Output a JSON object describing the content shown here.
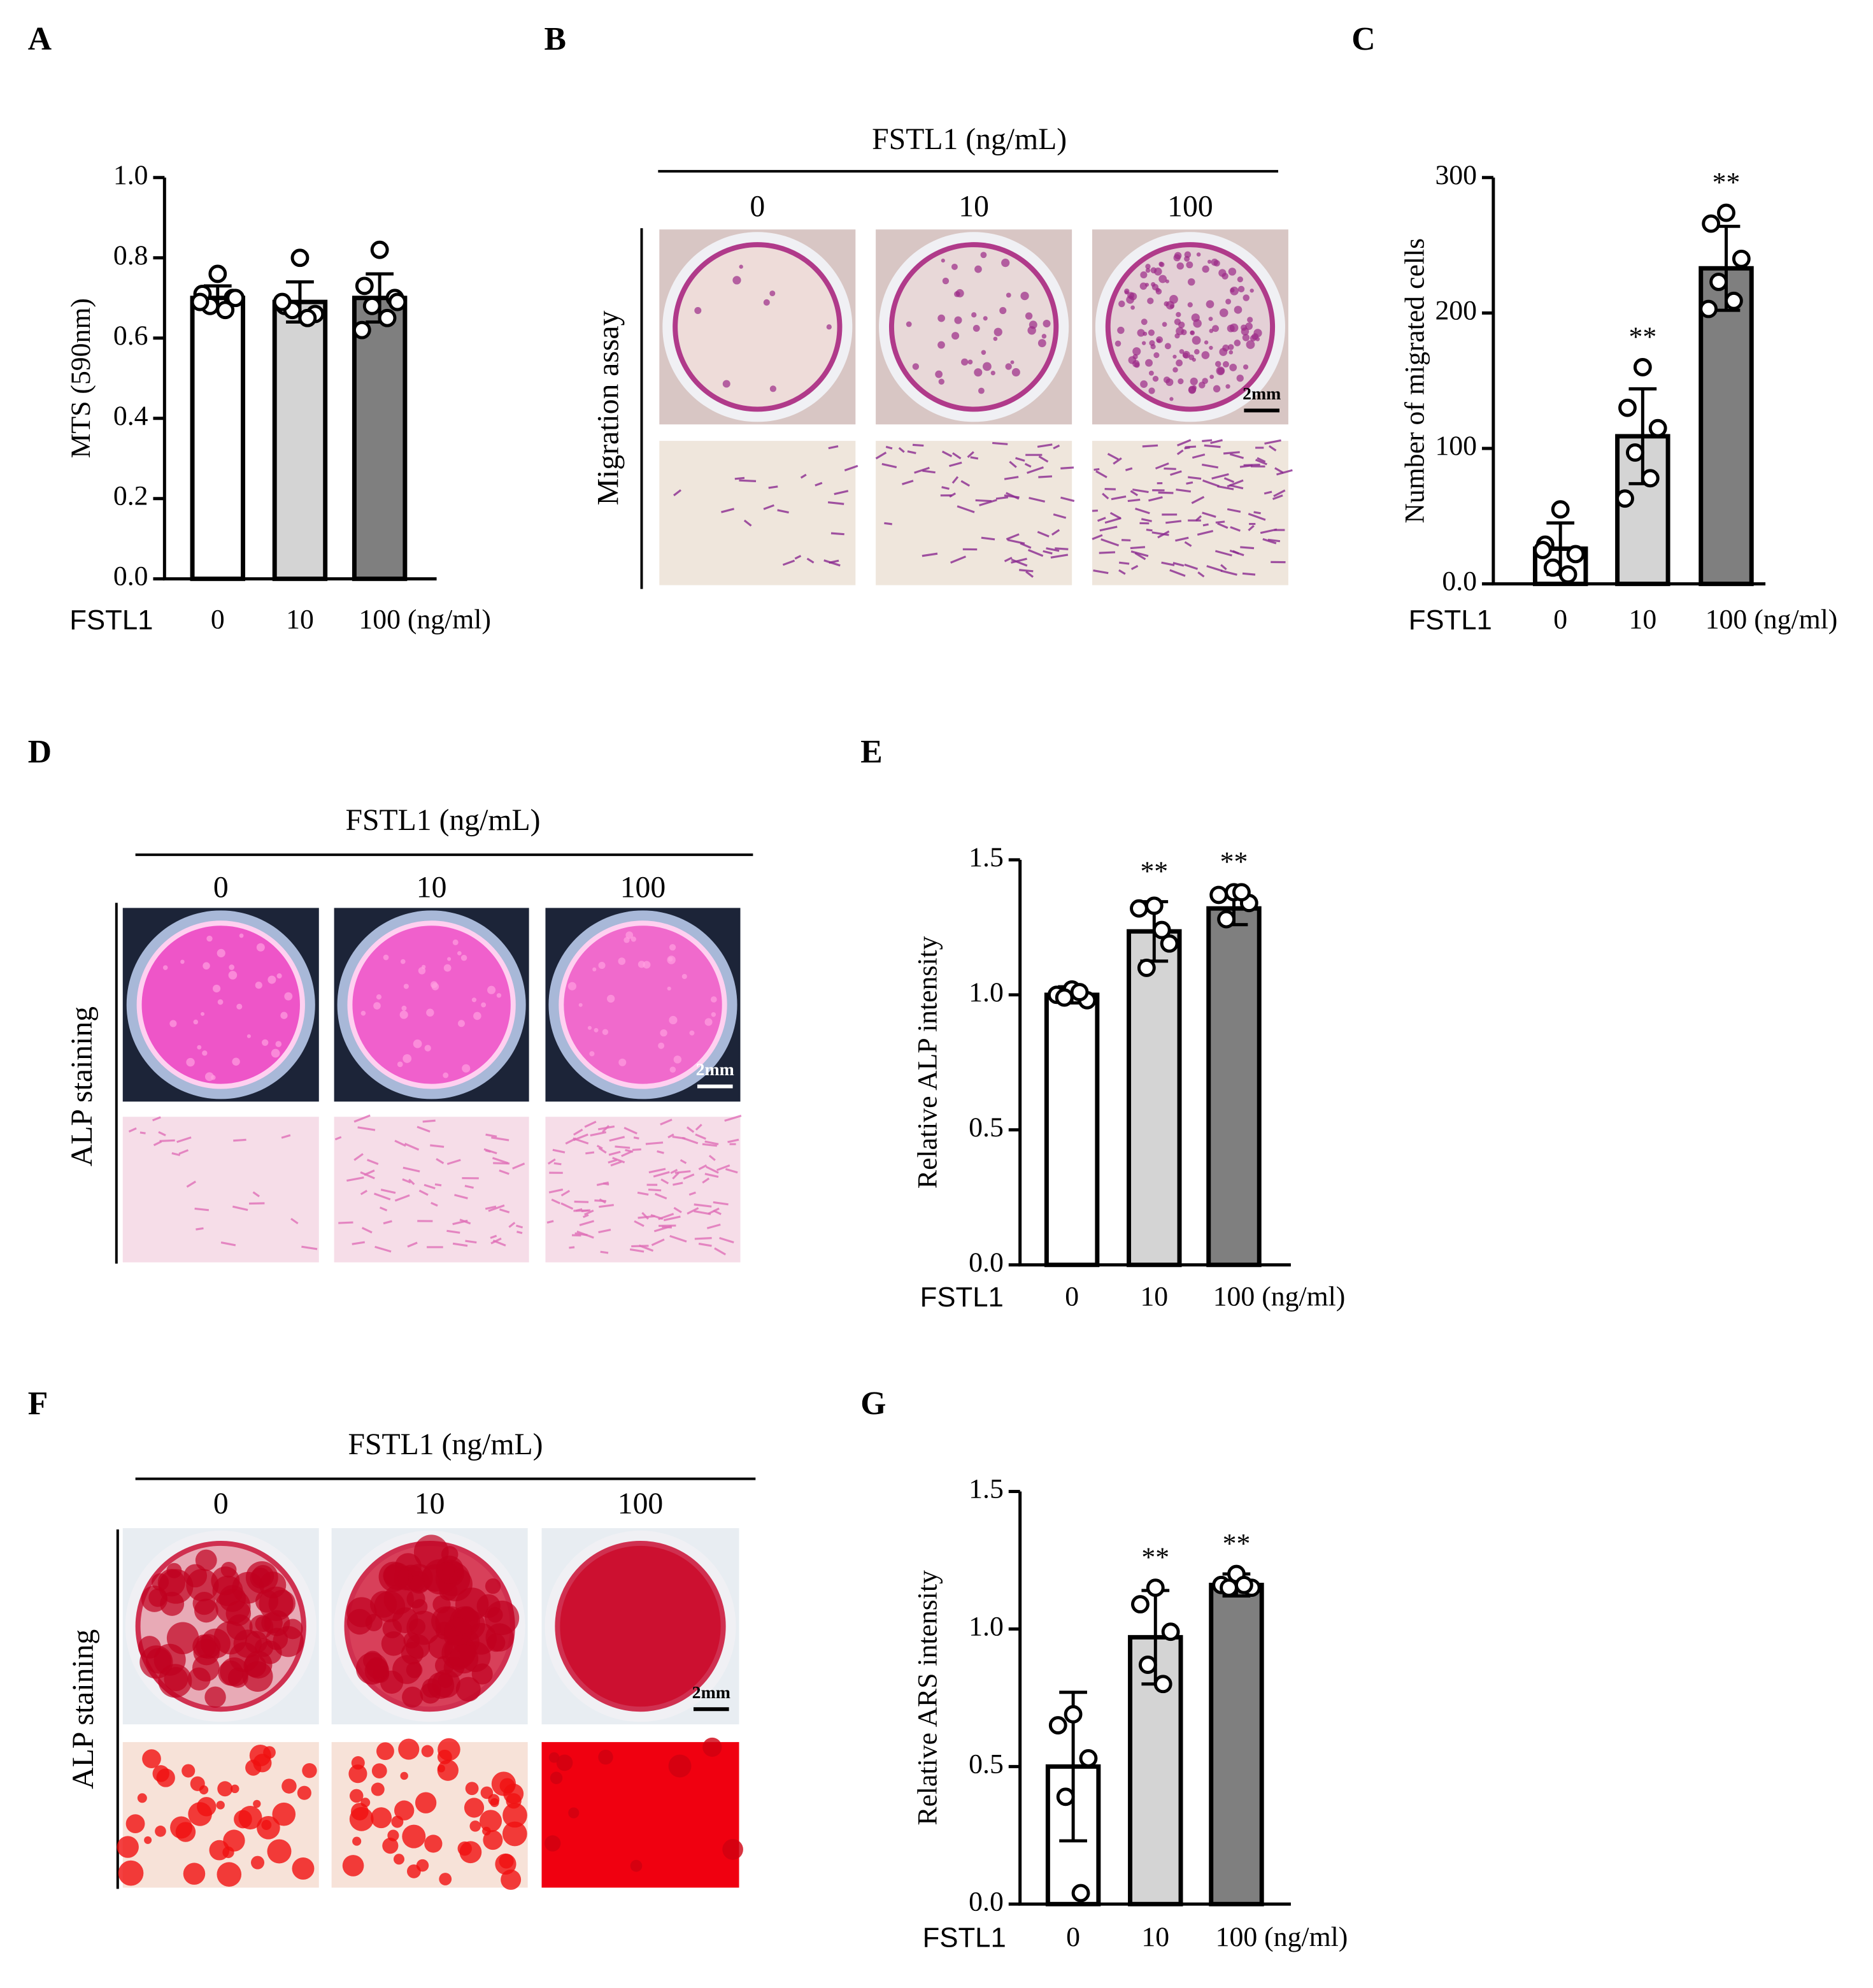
{
  "chart_data": [
    {
      "type": "bar",
      "panel": "A",
      "ylabel": "MTS (590nm)",
      "x_prefix": "FSTL1",
      "x_unit": "(ng/ml)",
      "categories": [
        "0",
        "10",
        "100"
      ],
      "values": [
        0.7,
        0.69,
        0.7
      ],
      "errors": [
        0.03,
        0.05,
        0.06
      ],
      "points": [
        [
          0.76,
          0.71,
          0.7,
          0.68,
          0.67,
          0.69,
          0.7
        ],
        [
          0.8,
          0.68,
          0.66,
          0.67,
          0.65,
          0.69
        ],
        [
          0.82,
          0.73,
          0.7,
          0.68,
          0.65,
          0.62,
          0.69
        ]
      ],
      "significance": [
        null,
        null,
        null
      ],
      "colors": [
        "#ffffff",
        "#d4d4d4",
        "#7f7f7f"
      ],
      "ylim": [
        0,
        1.0
      ],
      "yticks": [
        {
          "value": 0,
          "label": "0.0"
        },
        0.2,
        0.4,
        0.6,
        0.8,
        {
          "value": 1.0,
          "label": "1.0"
        }
      ]
    },
    {
      "type": "bar",
      "panel": "C",
      "ylabel": "Number of migrated cells",
      "x_prefix": "FSTL1",
      "x_unit": "(ng/ml)",
      "categories": [
        "0",
        "10",
        "100"
      ],
      "values": [
        26,
        109,
        233
      ],
      "errors": [
        19,
        35,
        31
      ],
      "points": [
        [
          55,
          29,
          22,
          12,
          7,
          25
        ],
        [
          160,
          130,
          115,
          97,
          78,
          63
        ],
        [
          274,
          266,
          240,
          223,
          209,
          203
        ]
      ],
      "significance": [
        null,
        "**",
        "**"
      ],
      "colors": [
        "#ffffff",
        "#d4d4d4",
        "#7f7f7f"
      ],
      "ylim": [
        0,
        300
      ],
      "yticks": [
        {
          "value": 0,
          "label": "0.0"
        },
        100,
        200,
        300
      ]
    },
    {
      "type": "bar",
      "panel": "E",
      "ylabel": "Relative ALP intensity",
      "x_prefix": "FSTL1",
      "x_unit": "(ng/ml)",
      "categories": [
        "0",
        "10",
        "100"
      ],
      "values": [
        1.0,
        1.235,
        1.32
      ],
      "errors": [
        0.03,
        0.11,
        0.06
      ],
      "points": [
        [
          1.02,
          1.0,
          0.98,
          0.99,
          1.01
        ],
        [
          1.33,
          1.32,
          1.19,
          1.1,
          1.24
        ],
        [
          1.38,
          1.37,
          1.34,
          1.28,
          1.38
        ]
      ],
      "significance": [
        null,
        "**",
        "**"
      ],
      "colors": [
        "#ffffff",
        "#d4d4d4",
        "#7f7f7f"
      ],
      "ylim": [
        0,
        1.5
      ],
      "yticks": [
        {
          "value": 0,
          "label": "0.0"
        },
        0.5,
        {
          "value": 1.0,
          "label": "1.0"
        },
        1.5
      ]
    },
    {
      "type": "bar",
      "panel": "G",
      "ylabel": "Relative ARS intensity",
      "x_prefix": "FSTL1",
      "x_unit": "(ng/ml)",
      "categories": [
        "0",
        "10",
        "100"
      ],
      "values": [
        0.5,
        0.97,
        1.16
      ],
      "errors": [
        0.27,
        0.17,
        0.04
      ],
      "points": [
        [
          0.69,
          0.65,
          0.53,
          0.39,
          0.04
        ],
        [
          1.15,
          1.09,
          0.99,
          0.87,
          0.8
        ],
        [
          1.2,
          1.16,
          1.15,
          1.15,
          1.16
        ]
      ],
      "significance": [
        null,
        "**",
        "**"
      ],
      "colors": [
        "#ffffff",
        "#d4d4d4",
        "#7f7f7f"
      ],
      "ylim": [
        0,
        1.5
      ],
      "yticks": [
        {
          "value": 0,
          "label": "0.0"
        },
        0.5,
        {
          "value": 1.0,
          "label": "1.0"
        },
        1.5
      ]
    }
  ],
  "image_panels": [
    {
      "panel": "B",
      "header": "FSTL1 (ng/mL)",
      "columns": [
        "0",
        "10",
        "100"
      ],
      "row_label": "Migration assay",
      "scale_bar": "2mm"
    },
    {
      "panel": "D",
      "header": "FSTL1 (ng/mL)",
      "columns": [
        "0",
        "10",
        "100"
      ],
      "row_label": "ALP staining",
      "scale_bar": "2mm"
    },
    {
      "panel": "F",
      "header": "FSTL1 (ng/mL)",
      "columns": [
        "0",
        "10",
        "100"
      ],
      "row_label": "ALP staining",
      "scale_bar": "2mm"
    }
  ]
}
